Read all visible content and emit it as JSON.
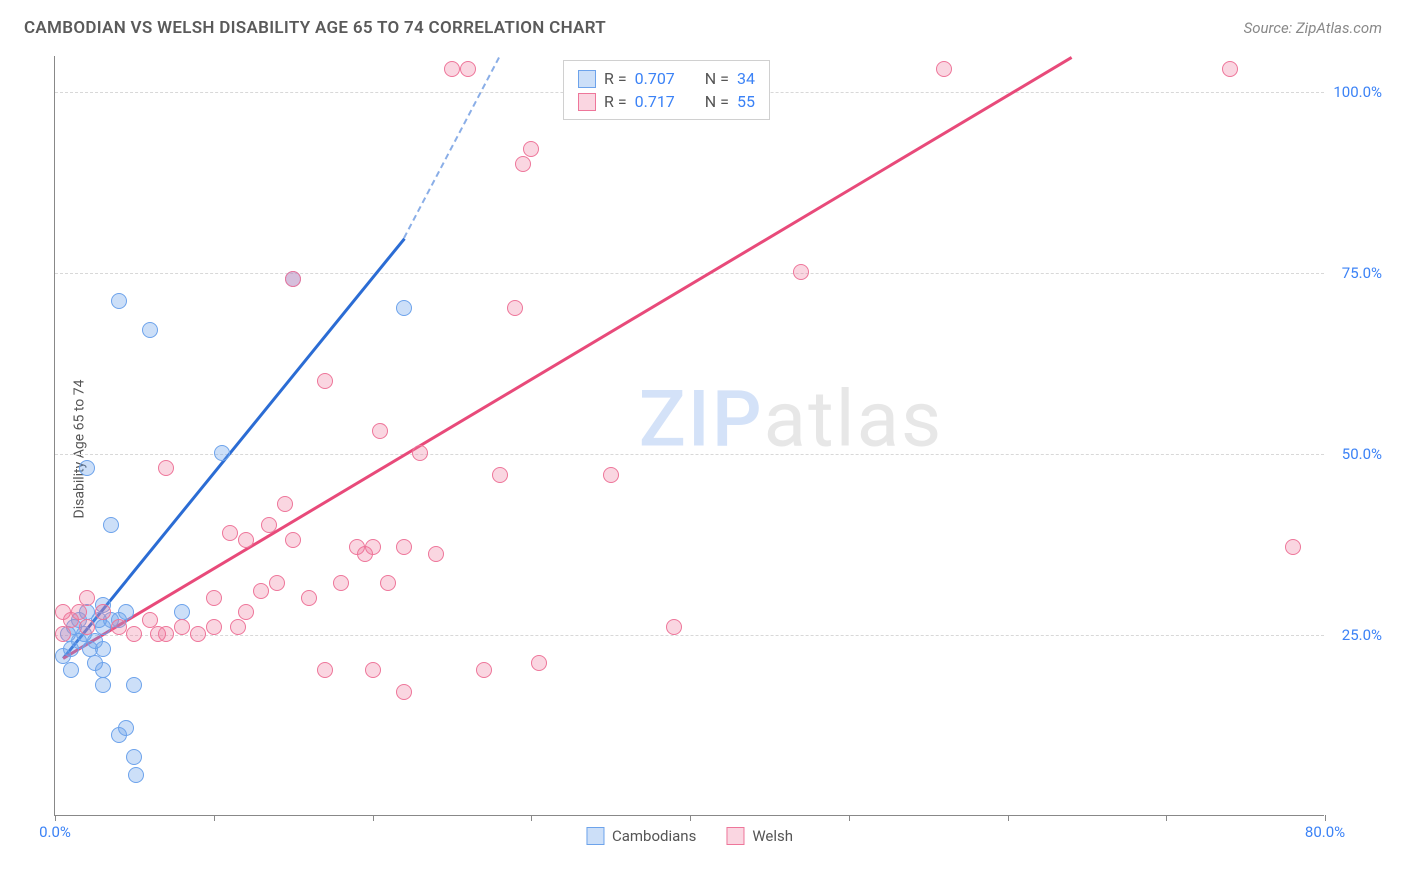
{
  "header": {
    "title": "CAMBODIAN VS WELSH DISABILITY AGE 65 TO 74 CORRELATION CHART",
    "source": "Source: ZipAtlas.com"
  },
  "chart": {
    "type": "scatter",
    "ylabel": "Disability Age 65 to 74",
    "xlim": [
      0,
      80
    ],
    "ylim": [
      0,
      105
    ],
    "xticks": [
      0,
      10,
      20,
      30,
      40,
      50,
      60,
      70,
      80
    ],
    "xtick_labels_shown": {
      "0": "0.0%",
      "80": "80.0%"
    },
    "yticks": [
      25,
      50,
      75,
      100
    ],
    "ytick_labels": {
      "25": "25.0%",
      "50": "50.0%",
      "75": "75.0%",
      "100": "100.0%"
    },
    "background_color": "#ffffff",
    "grid_color": "#d8d8d8",
    "axis_color": "#888888",
    "point_radius": 8,
    "series": [
      {
        "name": "Cambodians",
        "color_fill": "rgba(109, 163, 235, 0.35)",
        "color_stroke": "#6da3eb",
        "trend_color": "#2b6cd4",
        "R": "0.707",
        "N": "34",
        "trend": {
          "x1": 0.5,
          "y1": 22,
          "x2": 22,
          "y2": 80,
          "dash_to_x": 28,
          "dash_to_y": 105
        },
        "points": [
          [
            0.5,
            22
          ],
          [
            1,
            20
          ],
          [
            1,
            23
          ],
          [
            1.5,
            24
          ],
          [
            1.5,
            27
          ],
          [
            2,
            28
          ],
          [
            2,
            48
          ],
          [
            2.5,
            24
          ],
          [
            2.5,
            21
          ],
          [
            3,
            23
          ],
          [
            3,
            26
          ],
          [
            3,
            29
          ],
          [
            3,
            20
          ],
          [
            3,
            18
          ],
          [
            3.5,
            27
          ],
          [
            3.5,
            40
          ],
          [
            4,
            27
          ],
          [
            4.5,
            28
          ],
          [
            4,
            71
          ],
          [
            4,
            11
          ],
          [
            4.5,
            12
          ],
          [
            5,
            18
          ],
          [
            5,
            8
          ],
          [
            5.1,
            5.5
          ],
          [
            6,
            67
          ],
          [
            8,
            28
          ],
          [
            10.5,
            50
          ],
          [
            15,
            74
          ],
          [
            22,
            70
          ],
          [
            0.8,
            25
          ],
          [
            1.2,
            26
          ],
          [
            1.8,
            25
          ],
          [
            2.2,
            23
          ],
          [
            2.8,
            27
          ]
        ]
      },
      {
        "name": "Welsh",
        "color_fill": "rgba(238, 118, 154, 0.30)",
        "color_stroke": "#ee769a",
        "trend_color": "#e84a7a",
        "R": "0.717",
        "N": "55",
        "trend": {
          "x1": 0.5,
          "y1": 22,
          "x2": 64,
          "y2": 105
        },
        "points": [
          [
            0.5,
            25
          ],
          [
            1,
            27
          ],
          [
            2,
            26
          ],
          [
            2,
            30
          ],
          [
            3,
            28
          ],
          [
            4,
            26
          ],
          [
            5,
            25
          ],
          [
            6,
            27
          ],
          [
            6.5,
            25
          ],
          [
            7,
            48
          ],
          [
            7,
            25
          ],
          [
            8,
            26
          ],
          [
            9,
            25
          ],
          [
            10,
            26
          ],
          [
            10,
            30
          ],
          [
            11,
            39
          ],
          [
            11.5,
            26
          ],
          [
            12,
            38
          ],
          [
            12,
            28
          ],
          [
            13,
            31
          ],
          [
            13.5,
            40
          ],
          [
            14,
            32
          ],
          [
            14.5,
            43
          ],
          [
            15,
            38
          ],
          [
            15,
            74
          ],
          [
            16,
            30
          ],
          [
            17,
            60
          ],
          [
            17,
            20
          ],
          [
            18,
            32
          ],
          [
            19,
            37
          ],
          [
            19.5,
            36
          ],
          [
            20,
            37
          ],
          [
            20,
            20
          ],
          [
            20.5,
            53
          ],
          [
            21,
            32
          ],
          [
            22,
            37
          ],
          [
            22,
            17
          ],
          [
            23,
            50
          ],
          [
            24,
            36
          ],
          [
            25,
            103
          ],
          [
            26,
            103
          ],
          [
            27,
            20
          ],
          [
            28,
            47
          ],
          [
            29,
            70
          ],
          [
            29.5,
            90
          ],
          [
            30,
            92
          ],
          [
            30.5,
            21
          ],
          [
            35,
            47
          ],
          [
            39,
            26
          ],
          [
            47,
            75
          ],
          [
            56,
            103
          ],
          [
            74,
            103
          ],
          [
            78,
            37
          ],
          [
            0.5,
            28
          ],
          [
            1.5,
            28
          ]
        ]
      }
    ],
    "watermark": {
      "part1": "ZIP",
      "part2": "atlas"
    },
    "legend_top": {
      "rows": [
        {
          "swatch_fill": "rgba(109,163,235,0.35)",
          "swatch_stroke": "#6da3eb",
          "r_label": "R =",
          "r_val": "0.707",
          "n_label": "N =",
          "n_val": "34"
        },
        {
          "swatch_fill": "rgba(238,118,154,0.30)",
          "swatch_stroke": "#ee769a",
          "r_label": "R =",
          "r_val": "0.717",
          "n_label": "N =",
          "n_val": "55"
        }
      ]
    },
    "legend_bottom": [
      {
        "swatch_fill": "rgba(109,163,235,0.35)",
        "swatch_stroke": "#6da3eb",
        "label": "Cambodians"
      },
      {
        "swatch_fill": "rgba(238,118,154,0.30)",
        "swatch_stroke": "#ee769a",
        "label": "Welsh"
      }
    ]
  }
}
